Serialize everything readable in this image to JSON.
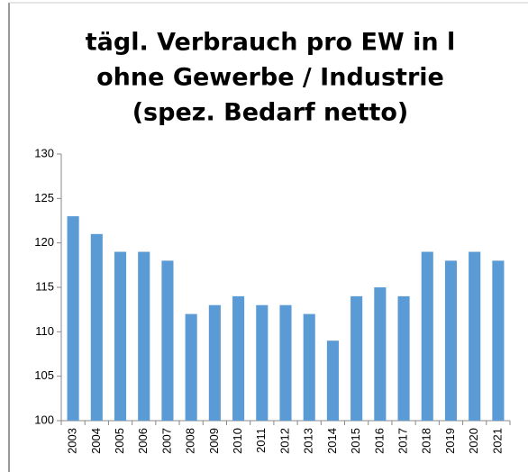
{
  "chart_data": {
    "type": "bar",
    "title": [
      "tägl. Verbrauch pro EW in l",
      "ohne Gewerbe / Industrie",
      "(spez. Bedarf netto)"
    ],
    "categories": [
      "2003",
      "2004",
      "2005",
      "2006",
      "2007",
      "2008",
      "2009",
      "2010",
      "2011",
      "2012",
      "2013",
      "2014",
      "2015",
      "2016",
      "2017",
      "2018",
      "2019",
      "2020",
      "2021"
    ],
    "values": [
      123,
      121,
      119,
      119,
      118,
      112,
      113,
      114,
      113,
      113,
      112,
      109,
      114,
      115,
      114,
      119,
      118,
      119,
      118
    ],
    "color": "#5b9bd5",
    "ylim": [
      100,
      130
    ],
    "yticks": [
      100,
      105,
      110,
      115,
      120,
      125,
      130
    ],
    "grid": false
  }
}
